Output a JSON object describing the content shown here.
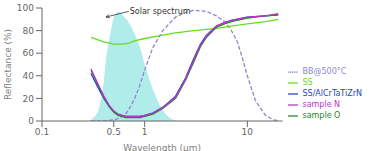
{
  "chart_data": {
    "type": "line",
    "xlabel": "Wavelength (μm)",
    "ylabel": "Reflectance (%)",
    "log": "x",
    "xlim": [
      0.1,
      22
    ],
    "xticks": [
      0.1,
      0.5,
      1,
      10
    ],
    "ylim": [
      0,
      100
    ],
    "yticks": [
      0,
      20,
      40,
      60,
      80,
      100
    ],
    "grid": false,
    "legend": "lower right",
    "series": [
      {
        "type": "area",
        "color": "#70ddd8",
        "x": [
          0.29,
          0.3,
          0.32,
          0.35,
          0.38,
          0.4,
          0.42,
          0.45,
          0.48,
          0.5,
          0.52,
          0.55,
          0.58,
          0.6,
          0.62,
          0.65,
          0.68,
          0.7,
          0.73,
          0.75,
          0.78,
          0.8,
          0.85,
          0.9,
          0.95,
          1.0,
          1.1,
          1.2,
          1.4,
          1.6,
          1.8,
          2.0,
          2.3,
          2.5
        ],
        "values": [
          0,
          1,
          3,
          8,
          20,
          35,
          55,
          72,
          85,
          92,
          95,
          97,
          96,
          94,
          93,
          91,
          89,
          87,
          84,
          82,
          79,
          77,
          71,
          65,
          58,
          50,
          38,
          28,
          14,
          6,
          2,
          0.5,
          0.1,
          0
        ]
      },
      {
        "name": "BB@500°C",
        "color": "#8888cc",
        "line_style": "dashed",
        "x": [
          0.3,
          0.35,
          0.4,
          0.45,
          0.5,
          0.55,
          0.6,
          0.65,
          0.7,
          0.75,
          0.8,
          0.9,
          1.0,
          1.2,
          1.5,
          2.0,
          2.5,
          3.0,
          4.0,
          5.0,
          6.0,
          7.0,
          8.0,
          9.0,
          10.0,
          12.0,
          15.0,
          18.0,
          20.0
        ],
        "values": [
          0.05,
          0.1,
          0.2,
          0.5,
          1,
          2,
          4,
          6,
          10,
          15,
          20,
          32,
          45,
          65,
          80,
          92,
          96,
          98,
          97,
          93,
          88,
          80,
          70,
          55,
          40,
          18,
          5,
          1,
          0.3
        ]
      },
      {
        "name": "SS",
        "color": "#66dd22",
        "line_style": "solid",
        "x": [
          0.3,
          0.4,
          0.5,
          0.6,
          0.7,
          0.8,
          1.0,
          1.5,
          2.0,
          3.0,
          5.0,
          7.0,
          10.0,
          15.0,
          20.0
        ],
        "values": [
          74,
          70,
          68,
          68,
          69,
          71,
          73,
          76,
          78,
          80,
          82,
          84,
          86,
          88,
          90
        ]
      },
      {
        "name": "SS/AlCrTaTiZrN",
        "color": "#2244cc",
        "line_style": "solid",
        "x": [
          0.3,
          0.35,
          0.4,
          0.45,
          0.5,
          0.55,
          0.6,
          0.65,
          0.7,
          0.75,
          0.8,
          0.9,
          1.0,
          1.2,
          1.5,
          2.0,
          2.5,
          3.0,
          3.5,
          4.0,
          5.0,
          6.0,
          7.0,
          10.0,
          15.0,
          20.0
        ],
        "values": [
          42,
          30,
          20,
          13,
          8,
          6,
          5,
          4,
          4,
          4,
          4,
          4,
          5,
          7,
          12,
          22,
          38,
          55,
          68,
          76,
          84,
          87,
          89,
          92,
          93,
          94
        ]
      },
      {
        "name": "sample O",
        "color": "#228822",
        "line_style": "solid",
        "x": [
          0.3,
          0.35,
          0.4,
          0.45,
          0.5,
          0.55,
          0.6,
          0.65,
          0.7,
          0.75,
          0.8,
          0.9,
          1.0,
          1.2,
          1.5,
          2.0,
          2.5,
          3.0,
          3.5,
          4.0,
          5.0,
          6.0,
          7.0,
          10.0,
          15.0,
          20.0
        ],
        "values": [
          45,
          32,
          21,
          13,
          8,
          5,
          4,
          3,
          3,
          3,
          3,
          3,
          4,
          6,
          11,
          20,
          36,
          52,
          66,
          74,
          83,
          86,
          88,
          91,
          93,
          94
        ]
      },
      {
        "name": "sample N",
        "color": "#bb33cc",
        "line_style": "solid",
        "x": [
          0.3,
          0.35,
          0.4,
          0.45,
          0.5,
          0.55,
          0.6,
          0.65,
          0.7,
          0.75,
          0.8,
          0.9,
          1.0,
          1.2,
          1.5,
          2.0,
          2.5,
          3.0,
          3.5,
          4.0,
          5.0,
          6.0,
          7.0,
          10.0,
          15.0,
          20.0
        ],
        "values": [
          46,
          33,
          22,
          14,
          9,
          6,
          5,
          4,
          4,
          4,
          4,
          4,
          5,
          7,
          12,
          21,
          37,
          54,
          67,
          75,
          84,
          87,
          89,
          92,
          93,
          95
        ]
      }
    ],
    "annotations": [
      {
        "text": "Solar spectrum",
        "xy": [
          0.42,
          92
        ],
        "xytext": [
          0.7,
          97
        ]
      }
    ]
  }
}
